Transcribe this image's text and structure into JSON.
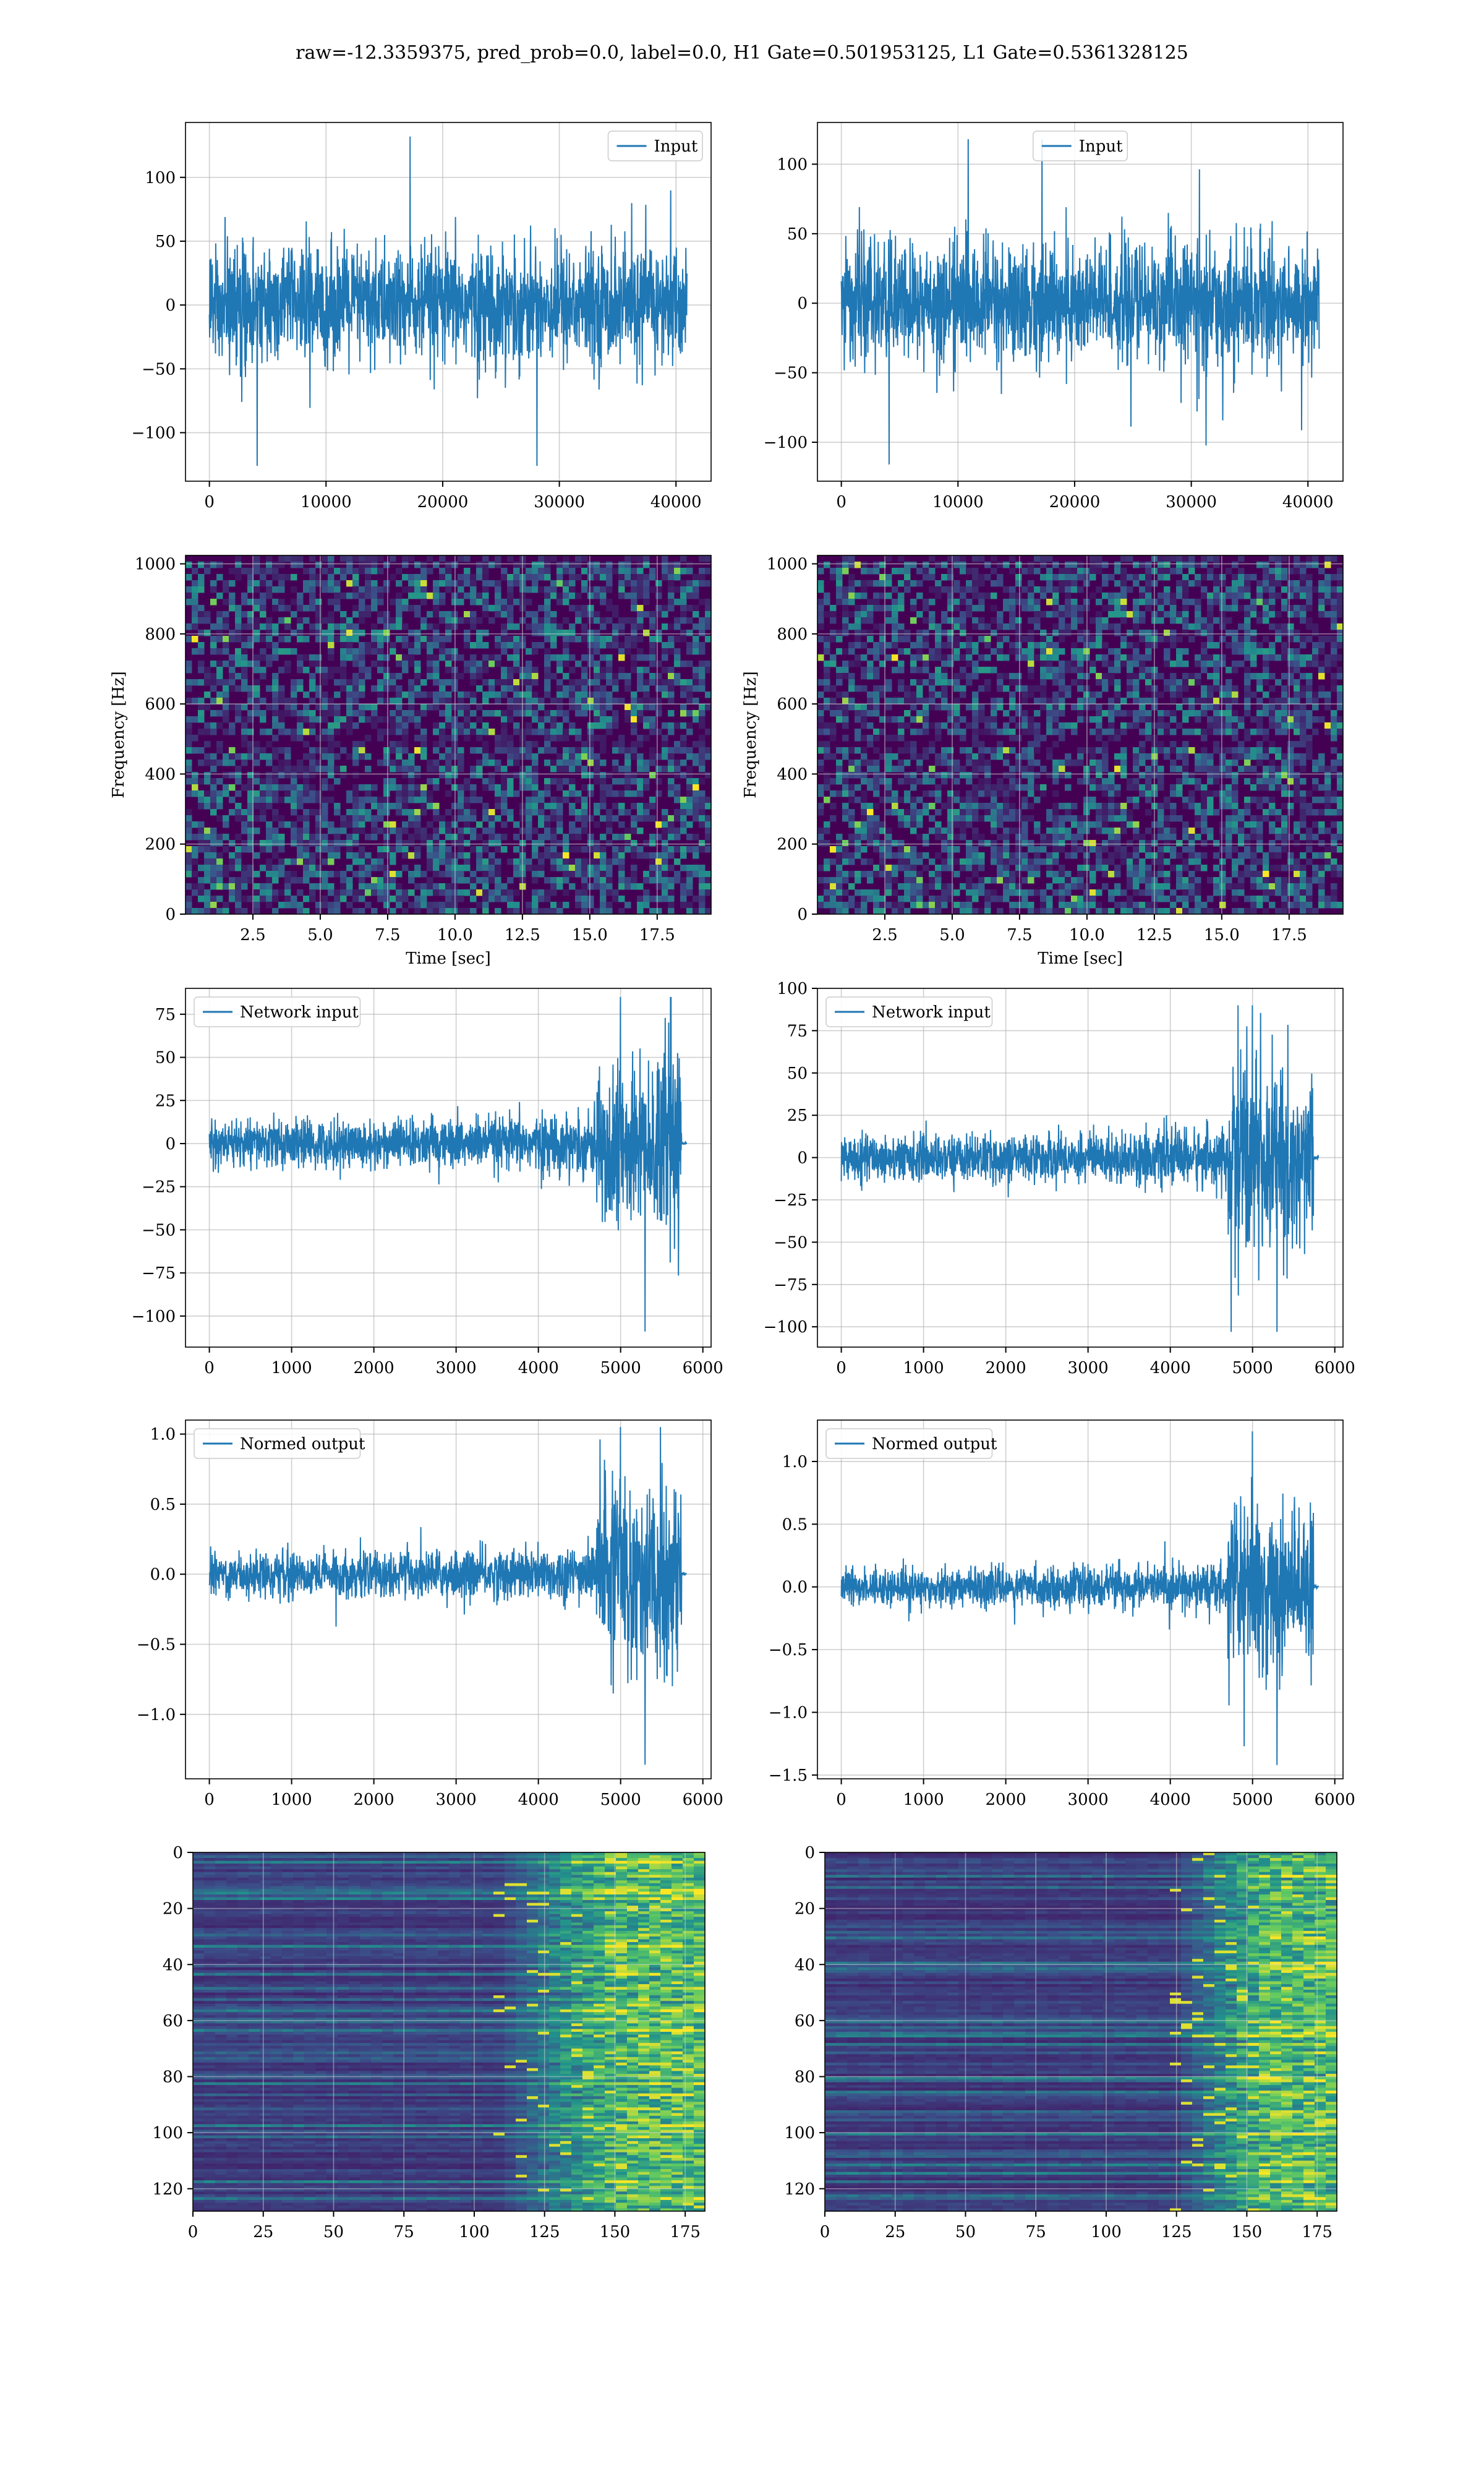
{
  "figure": {
    "title": "raw=-12.3359375, pred_prob=0.0, label=0.0, H1 Gate=0.501953125, L1 Gate=0.5361328125"
  },
  "colors": {
    "line": "#1f77b4",
    "grid": "#b0b0b0",
    "viridis_dark": "#440154",
    "viridis_teal": "#21918c",
    "viridis_yellow": "#fde725"
  },
  "chart_data": [
    {
      "id": "h1_input",
      "type": "line",
      "series": [
        {
          "name": "Input"
        }
      ],
      "xlim": [
        -2048,
        43008
      ],
      "ylim": [
        -138,
        143
      ],
      "xticks": [
        0,
        10000,
        20000,
        30000,
        40000
      ],
      "xtick_labels": [
        "0",
        "10000",
        "20000",
        "30000",
        "40000"
      ],
      "yticks": [
        -100,
        -50,
        0,
        50,
        100
      ],
      "ytick_labels": [
        "−100",
        "−50",
        "0",
        "50",
        "100"
      ],
      "legend": "top-right",
      "grid": true,
      "signal": {
        "x_start": 0,
        "x_end": 40960,
        "typical_amplitude": 40,
        "max": 132,
        "min": -126
      }
    },
    {
      "id": "l1_input",
      "type": "line",
      "series": [
        {
          "name": "Input"
        }
      ],
      "xlim": [
        -2048,
        43008
      ],
      "ylim": [
        -128,
        130
      ],
      "xticks": [
        0,
        10000,
        20000,
        30000,
        40000
      ],
      "xtick_labels": [
        "0",
        "10000",
        "20000",
        "30000",
        "40000"
      ],
      "yticks": [
        -100,
        -50,
        0,
        50,
        100
      ],
      "ytick_labels": [
        "−100",
        "−50",
        "0",
        "50",
        "100"
      ],
      "legend": "top-center",
      "grid": true,
      "signal": {
        "x_start": 0,
        "x_end": 40960,
        "typical_amplitude": 38,
        "max": 118,
        "min": -116
      }
    },
    {
      "id": "h1_spectrogram",
      "type": "heatmap",
      "xlim": [
        0,
        19.5
      ],
      "ylim": [
        0,
        1024
      ],
      "xticks": [
        2.5,
        5.0,
        7.5,
        10.0,
        12.5,
        15.0,
        17.5
      ],
      "xtick_labels": [
        "2.5",
        "5.0",
        "7.5",
        "10.0",
        "12.5",
        "15.0",
        "17.5"
      ],
      "yticks": [
        0,
        200,
        400,
        600,
        800,
        1000
      ],
      "ytick_labels": [
        "0",
        "200",
        "400",
        "600",
        "800",
        "1000"
      ],
      "xlabel": "Time [sec]",
      "ylabel": "Frequency [Hz]",
      "grid": true,
      "colormap": "viridis"
    },
    {
      "id": "l1_spectrogram",
      "type": "heatmap",
      "xlim": [
        0,
        19.5
      ],
      "ylim": [
        0,
        1024
      ],
      "xticks": [
        2.5,
        5.0,
        7.5,
        10.0,
        12.5,
        15.0,
        17.5
      ],
      "xtick_labels": [
        "2.5",
        "5.0",
        "7.5",
        "10.0",
        "12.5",
        "15.0",
        "17.5"
      ],
      "yticks": [
        0,
        200,
        400,
        600,
        800,
        1000
      ],
      "ytick_labels": [
        "0",
        "200",
        "400",
        "600",
        "800",
        "1000"
      ],
      "xlabel": "Time [sec]",
      "ylabel": "Frequency [Hz]",
      "grid": true,
      "colormap": "viridis"
    },
    {
      "id": "h1_network_input",
      "type": "line",
      "series": [
        {
          "name": "Network input"
        }
      ],
      "xlim": [
        -290,
        6100
      ],
      "ylim": [
        -118,
        90
      ],
      "xticks": [
        0,
        1000,
        2000,
        3000,
        4000,
        5000,
        6000
      ],
      "xtick_labels": [
        "0",
        "1000",
        "2000",
        "3000",
        "4000",
        "5000",
        "6000"
      ],
      "yticks": [
        -100,
        -75,
        -50,
        -25,
        0,
        25,
        50,
        75
      ],
      "ytick_labels": [
        "−100",
        "−75",
        "−50",
        "−25",
        "0",
        "25",
        "50",
        "75"
      ],
      "legend": "top-left",
      "grid": true,
      "signal": {
        "x_start": 0,
        "x_end": 5800,
        "burst_start": 4700,
        "burst_end": 5740,
        "base_amplitude": 12,
        "burst_amplitude": 50,
        "max": 85,
        "min": -109
      }
    },
    {
      "id": "l1_network_input",
      "type": "line",
      "series": [
        {
          "name": "Network input"
        }
      ],
      "xlim": [
        -290,
        6100
      ],
      "ylim": [
        -112,
        100
      ],
      "xticks": [
        0,
        1000,
        2000,
        3000,
        4000,
        5000,
        6000
      ],
      "xtick_labels": [
        "0",
        "1000",
        "2000",
        "3000",
        "4000",
        "5000",
        "6000"
      ],
      "yticks": [
        -100,
        -75,
        -50,
        -25,
        0,
        25,
        50,
        75,
        100
      ],
      "ytick_labels": [
        "−100",
        "−75",
        "−50",
        "−25",
        "0",
        "25",
        "50",
        "75",
        "100"
      ],
      "legend": "top-left",
      "grid": true,
      "signal": {
        "x_start": 0,
        "x_end": 5800,
        "burst_start": 4700,
        "burst_end": 5740,
        "base_amplitude": 12,
        "burst_amplitude": 55,
        "max": 90,
        "min": -103
      }
    },
    {
      "id": "h1_normed_output",
      "type": "line",
      "series": [
        {
          "name": "Normed output"
        }
      ],
      "xlim": [
        -290,
        6100
      ],
      "ylim": [
        -1.46,
        1.1
      ],
      "xticks": [
        0,
        1000,
        2000,
        3000,
        4000,
        5000,
        6000
      ],
      "xtick_labels": [
        "0",
        "1000",
        "2000",
        "3000",
        "4000",
        "5000",
        "6000"
      ],
      "yticks": [
        -1.0,
        -0.5,
        0.0,
        0.5,
        1.0
      ],
      "ytick_labels": [
        "−1.0",
        "−0.5",
        "0.0",
        "0.5",
        "1.0"
      ],
      "legend": "top-left",
      "grid": true,
      "signal": {
        "x_start": 0,
        "x_end": 5800,
        "burst_start": 4700,
        "burst_end": 5740,
        "base_amplitude": 0.14,
        "burst_amplitude": 0.62,
        "max": 1.05,
        "min": -1.36
      }
    },
    {
      "id": "l1_normed_output",
      "type": "line",
      "series": [
        {
          "name": "Normed output"
        }
      ],
      "xlim": [
        -290,
        6100
      ],
      "ylim": [
        -1.53,
        1.33
      ],
      "xticks": [
        0,
        1000,
        2000,
        3000,
        4000,
        5000,
        6000
      ],
      "xtick_labels": [
        "0",
        "1000",
        "2000",
        "3000",
        "4000",
        "5000",
        "6000"
      ],
      "yticks": [
        -1.5,
        -1.0,
        -0.5,
        0.0,
        0.5,
        1.0
      ],
      "ytick_labels": [
        "−1.5",
        "−1.0",
        "−0.5",
        "0.0",
        "0.5",
        "1.0"
      ],
      "legend": "top-left",
      "grid": true,
      "signal": {
        "x_start": 0,
        "x_end": 5800,
        "burst_start": 4700,
        "burst_end": 5740,
        "base_amplitude": 0.13,
        "burst_amplitude": 0.66,
        "max": 1.24,
        "min": -1.42
      }
    },
    {
      "id": "h1_filterbank",
      "type": "heatmap",
      "xlim": [
        0,
        182
      ],
      "ylim": [
        128,
        0
      ],
      "xticks": [
        0,
        25,
        50,
        75,
        100,
        125,
        150,
        175
      ],
      "xtick_labels": [
        "0",
        "25",
        "50",
        "75",
        "100",
        "125",
        "150",
        "175"
      ],
      "yticks": [
        0,
        20,
        40,
        60,
        80,
        100,
        120
      ],
      "ytick_labels": [
        "0",
        "20",
        "40",
        "60",
        "80",
        "100",
        "120"
      ],
      "grid": true,
      "colormap": "viridis",
      "activity_onset": 110
    },
    {
      "id": "l1_filterbank",
      "type": "heatmap",
      "xlim": [
        0,
        182
      ],
      "ylim": [
        128,
        0
      ],
      "xticks": [
        0,
        25,
        50,
        75,
        100,
        125,
        150,
        175
      ],
      "xtick_labels": [
        "0",
        "25",
        "50",
        "75",
        "100",
        "125",
        "150",
        "175"
      ],
      "yticks": [
        0,
        20,
        40,
        60,
        80,
        100,
        120
      ],
      "ytick_labels": [
        "0",
        "20",
        "40",
        "60",
        "80",
        "100",
        "120"
      ],
      "grid": true,
      "colormap": "viridis",
      "activity_onset": 125
    }
  ]
}
